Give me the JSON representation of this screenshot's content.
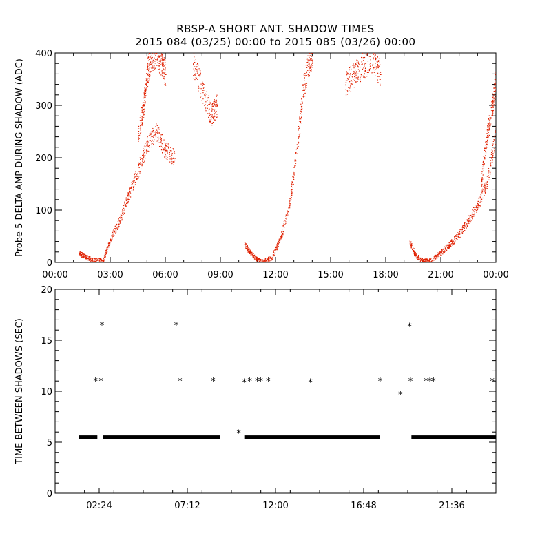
{
  "title_line1": "RBSP-A SHORT ANT. SHADOW TIMES",
  "title_line2": "2015 084 (03/25) 00:00 to 2015 085 (03/26) 00:00",
  "colors": {
    "scatter": "#e02000",
    "marker": "#000000",
    "axes": "#000000"
  },
  "chart_data": [
    {
      "type": "scatter",
      "ylabel": "Probe 5 DELTA AMP DURING SHADOW (ADC)",
      "xlabel": "",
      "xlim": [
        0,
        24
      ],
      "ylim": [
        0,
        400
      ],
      "x_tick_labels": [
        "00:00",
        "03:00",
        "06:00",
        "09:00",
        "12:00",
        "15:00",
        "18:00",
        "21:00",
        "00:00"
      ],
      "x_ticks": [
        0,
        3,
        6,
        9,
        12,
        15,
        18,
        21,
        24
      ],
      "y_ticks": [
        0,
        100,
        200,
        300,
        400
      ],
      "y_tick_labels": [
        "0",
        "100",
        "200",
        "300",
        "400"
      ],
      "marker": "dot",
      "series": [
        {
          "x": [
            1.3,
            1.6,
            2.0,
            2.6,
            3.0,
            3.5,
            4.0,
            4.5,
            5.0,
            5.5,
            6.0,
            6.5
          ],
          "y": [
            18,
            12,
            5,
            4,
            45,
            80,
            130,
            175,
            225,
            250,
            215,
            200
          ]
        },
        {
          "x": [
            4.5,
            4.8,
            5.0,
            5.2,
            5.5,
            5.8,
            6.0
          ],
          "y": [
            240,
            300,
            360,
            390,
            400,
            380,
            360
          ]
        },
        {
          "x": [
            7.5,
            8.0,
            8.5,
            8.8
          ],
          "y": [
            380,
            330,
            280,
            300
          ]
        },
        {
          "x": [
            10.3,
            10.6,
            11.0,
            11.3,
            11.8,
            12.3,
            12.8,
            13.2,
            13.5
          ],
          "y": [
            35,
            20,
            5,
            2,
            10,
            50,
            120,
            230,
            330
          ]
        },
        {
          "x": [
            13.5,
            13.8,
            14.0
          ],
          "y": [
            330,
            380,
            400
          ]
        },
        {
          "x": [
            15.8,
            16.3,
            16.8,
            17.3,
            17.7
          ],
          "y": [
            340,
            360,
            380,
            390,
            360
          ]
        },
        {
          "x": [
            19.3,
            19.6,
            20.0,
            20.5,
            21.0,
            21.5,
            22.0,
            22.5,
            23.0,
            23.5,
            24.0
          ],
          "y": [
            40,
            15,
            3,
            5,
            20,
            35,
            55,
            80,
            110,
            150,
            250
          ]
        },
        {
          "x": [
            23.2,
            23.5,
            23.8,
            24.0
          ],
          "y": [
            160,
            240,
            300,
            350
          ]
        }
      ]
    },
    {
      "type": "scatter",
      "ylabel": "TIME BETWEEN SHADOWS (SEC)",
      "xlabel": "",
      "xlim": [
        0,
        24
      ],
      "ylim": [
        0,
        20
      ],
      "x_tick_labels": [
        "02:24",
        "07:12",
        "12:00",
        "16:48",
        "21:36"
      ],
      "x_ticks": [
        2.4,
        7.2,
        12.0,
        16.8,
        21.6
      ],
      "y_ticks": [
        0,
        5,
        10,
        15,
        20
      ],
      "y_tick_labels": [
        "0",
        "5",
        "10",
        "15",
        "20"
      ],
      "marker": "asterisk",
      "baseline_segments": [
        [
          1.3,
          2.3,
          5.5
        ],
        [
          2.6,
          9.0,
          5.5
        ],
        [
          10.3,
          17.7,
          5.5
        ],
        [
          19.4,
          24.0,
          5.5
        ]
      ],
      "series": [
        {
          "x": [
            2.2,
            2.5,
            2.55,
            6.6,
            6.8,
            8.6,
            10.0,
            10.3,
            10.6,
            11.0,
            11.2,
            11.6,
            13.9,
            17.7,
            18.8,
            19.3,
            19.35,
            20.2,
            20.4,
            20.6,
            23.8
          ],
          "y": [
            11,
            11,
            16.5,
            16.5,
            11,
            11,
            5.9,
            10.9,
            11,
            11,
            11,
            11,
            10.9,
            11,
            9.7,
            16.4,
            11,
            11,
            11,
            11,
            11
          ]
        }
      ]
    }
  ]
}
